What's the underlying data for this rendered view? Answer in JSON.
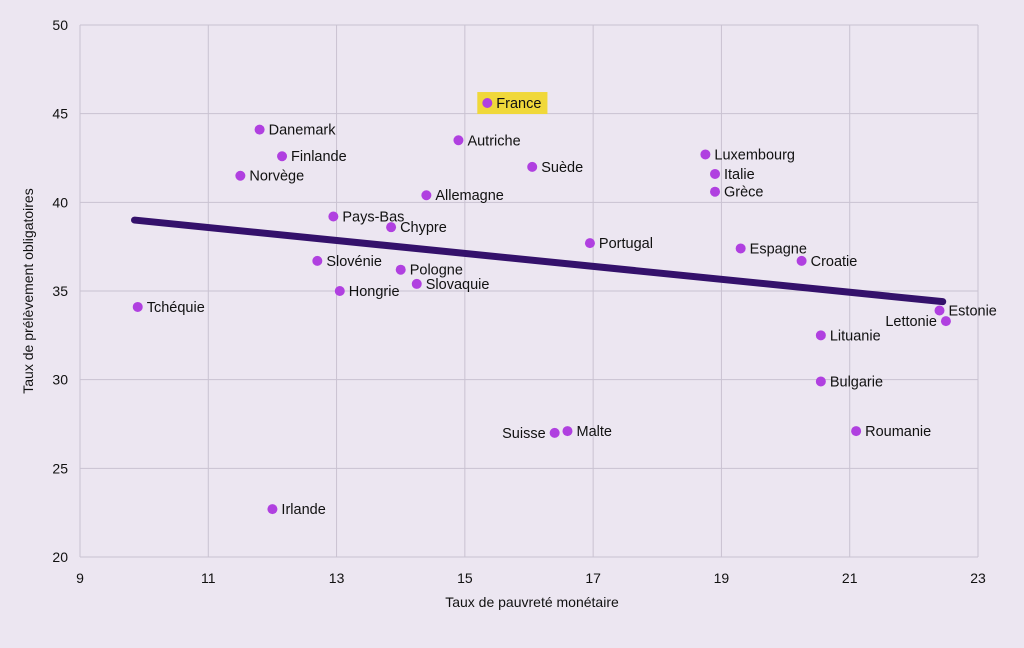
{
  "colors": {
    "background": "#ece6f1",
    "grid": "#c9c2d1",
    "point": "#b040e0",
    "trend": "#34116b",
    "highlight": "#f0d83a"
  },
  "chart_data": {
    "type": "scatter",
    "title": "",
    "xlabel": "Taux de pauvreté monétaire",
    "ylabel": "Taux de prélèvement obligatoires",
    "xlim": [
      9,
      23
    ],
    "ylim": [
      20,
      50
    ],
    "xticks": [
      9,
      11,
      13,
      15,
      17,
      19,
      21,
      23
    ],
    "yticks": [
      20,
      25,
      30,
      35,
      40,
      45,
      50
    ],
    "grid": true,
    "highlight": "France",
    "trendline": {
      "x": [
        9.85,
        22.45
      ],
      "y": [
        39.0,
        34.4
      ]
    },
    "points": [
      {
        "label": "France",
        "x": 15.35,
        "y": 45.6,
        "side": "right"
      },
      {
        "label": "Danemark",
        "x": 11.8,
        "y": 44.1,
        "side": "right"
      },
      {
        "label": "Autriche",
        "x": 14.9,
        "y": 43.5,
        "side": "right"
      },
      {
        "label": "Finlande",
        "x": 12.15,
        "y": 42.6,
        "side": "right"
      },
      {
        "label": "Suède",
        "x": 16.05,
        "y": 42.0,
        "side": "right"
      },
      {
        "label": "Luxembourg",
        "x": 18.75,
        "y": 42.7,
        "side": "right"
      },
      {
        "label": "Norvège",
        "x": 11.5,
        "y": 41.5,
        "side": "right"
      },
      {
        "label": "Italie",
        "x": 18.9,
        "y": 41.6,
        "side": "right"
      },
      {
        "label": "Grèce",
        "x": 18.9,
        "y": 40.6,
        "side": "right"
      },
      {
        "label": "Allemagne",
        "x": 14.4,
        "y": 40.4,
        "side": "right"
      },
      {
        "label": "Pays-Bas",
        "x": 12.95,
        "y": 39.2,
        "side": "right"
      },
      {
        "label": "Chypre",
        "x": 13.85,
        "y": 38.6,
        "side": "right"
      },
      {
        "label": "Portugal",
        "x": 16.95,
        "y": 37.7,
        "side": "right"
      },
      {
        "label": "Espagne",
        "x": 19.3,
        "y": 37.4,
        "side": "right"
      },
      {
        "label": "Slovénie",
        "x": 12.7,
        "y": 36.7,
        "side": "right"
      },
      {
        "label": "Croatie",
        "x": 20.25,
        "y": 36.7,
        "side": "right"
      },
      {
        "label": "Pologne",
        "x": 14.0,
        "y": 36.2,
        "side": "right"
      },
      {
        "label": "Slovaquie",
        "x": 14.25,
        "y": 35.4,
        "side": "right"
      },
      {
        "label": "Hongrie",
        "x": 13.05,
        "y": 35.0,
        "side": "right"
      },
      {
        "label": "Tchéquie",
        "x": 9.9,
        "y": 34.1,
        "side": "right"
      },
      {
        "label": "Estonie",
        "x": 22.4,
        "y": 33.9,
        "side": "right"
      },
      {
        "label": "Lettonie",
        "x": 22.5,
        "y": 33.3,
        "side": "left"
      },
      {
        "label": "Lituanie",
        "x": 20.55,
        "y": 32.5,
        "side": "right"
      },
      {
        "label": "Bulgarie",
        "x": 20.55,
        "y": 29.9,
        "side": "right"
      },
      {
        "label": "Suisse",
        "x": 16.4,
        "y": 27.0,
        "side": "left"
      },
      {
        "label": "Malte",
        "x": 16.6,
        "y": 27.1,
        "side": "right"
      },
      {
        "label": "Roumanie",
        "x": 21.1,
        "y": 27.1,
        "side": "right"
      },
      {
        "label": "Irlande",
        "x": 12.0,
        "y": 22.7,
        "side": "right"
      }
    ]
  }
}
